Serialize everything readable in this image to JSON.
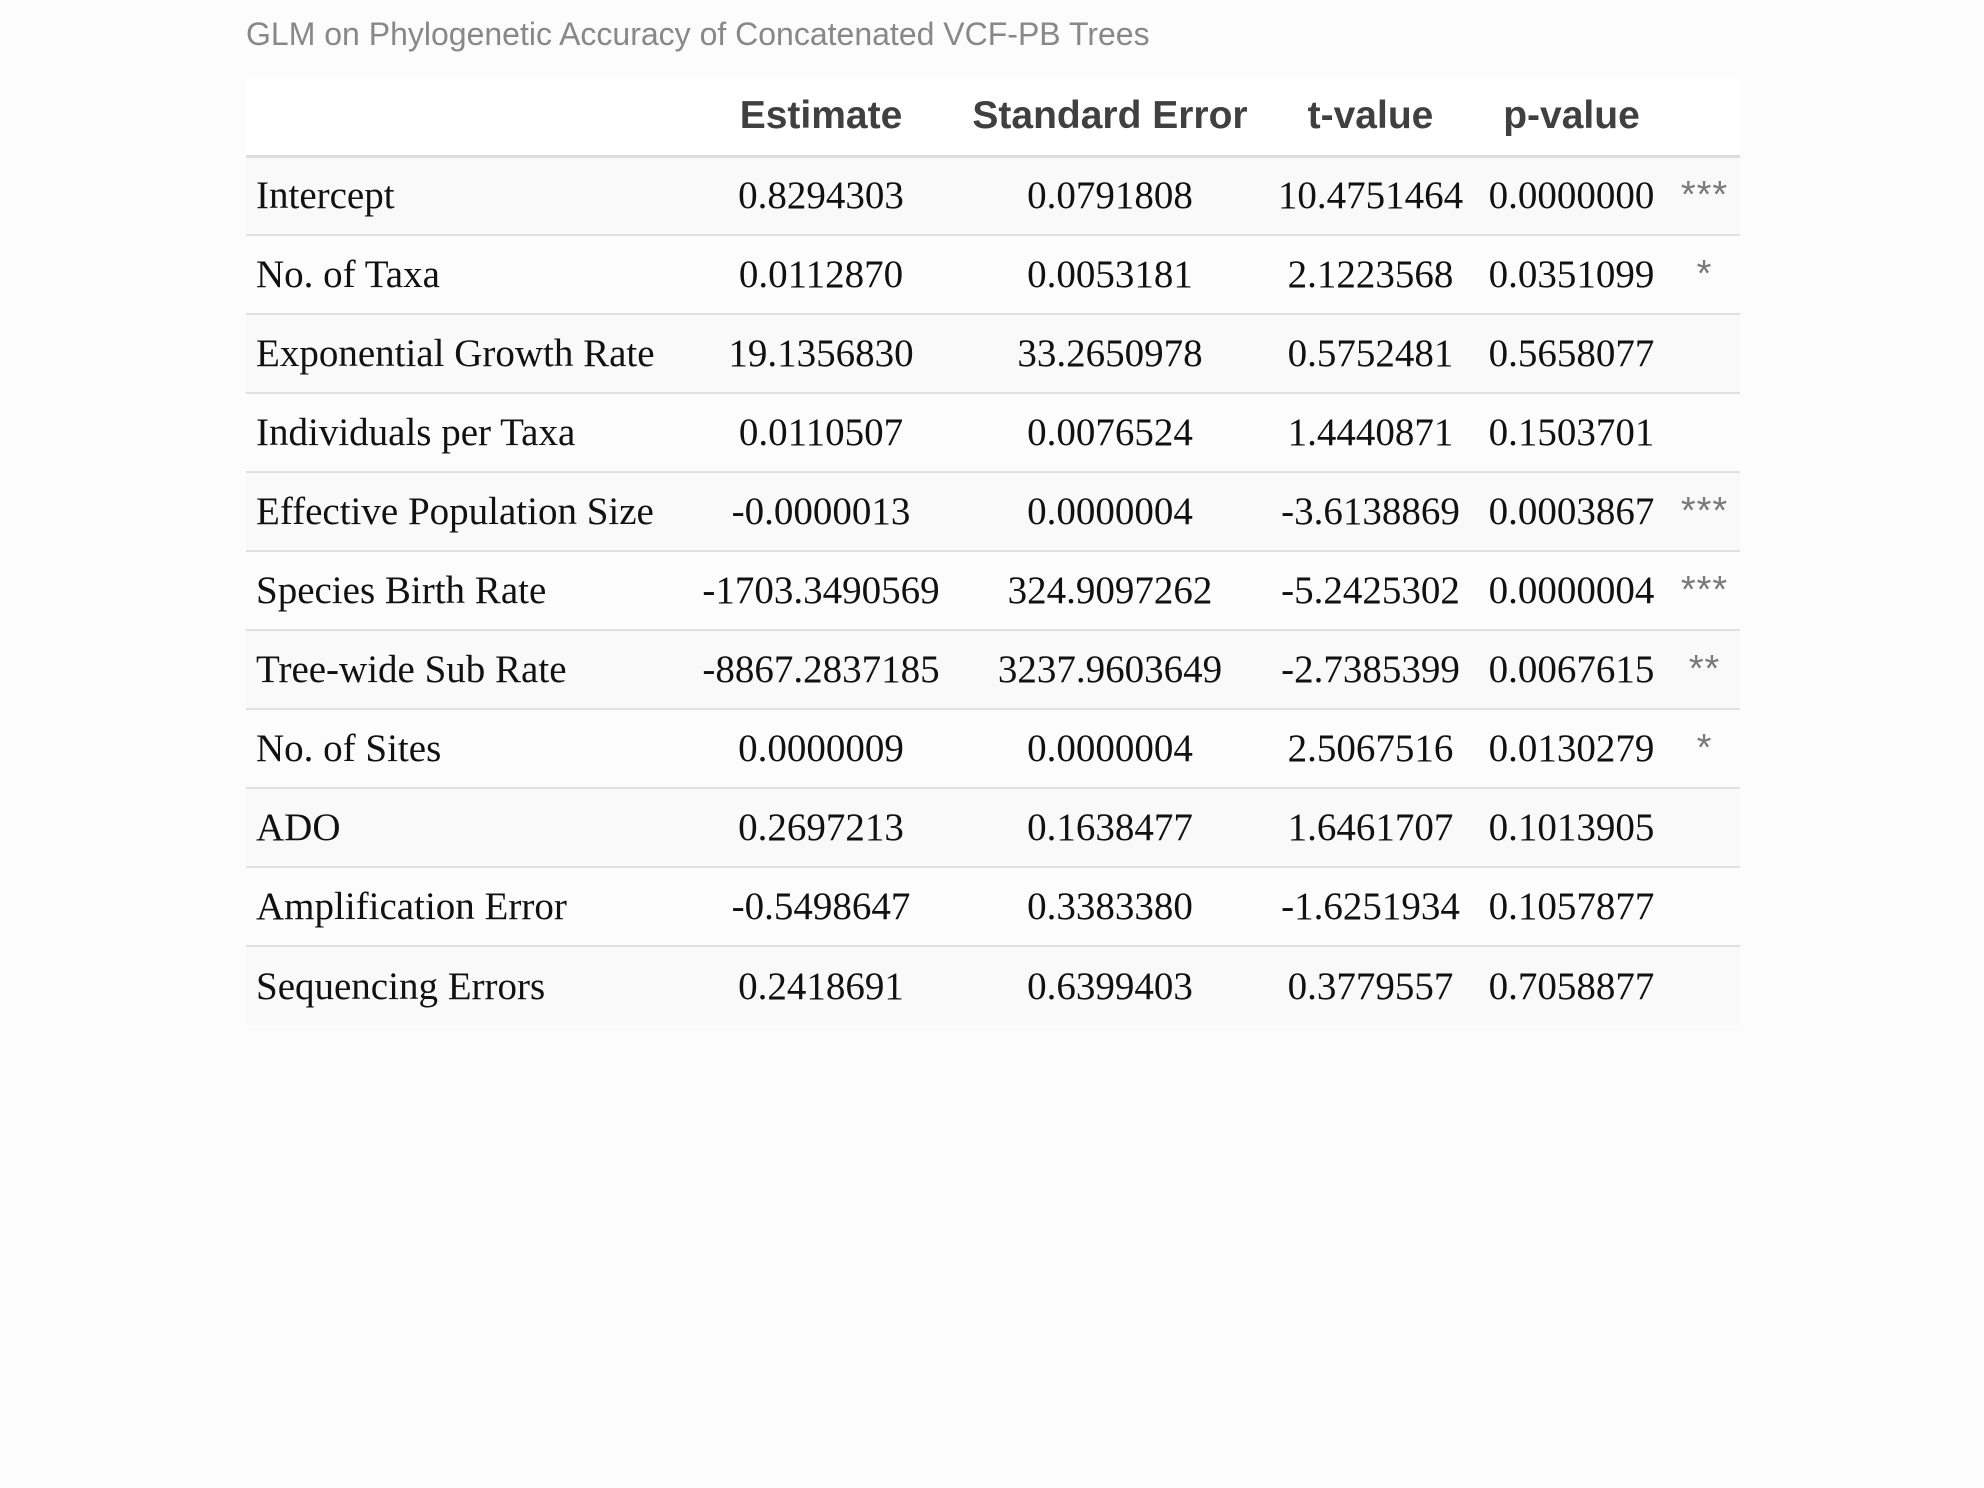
{
  "caption": "GLM on Phylogenetic Accuracy of Concatenated VCF-PB Trees",
  "columns": {
    "term": "",
    "estimate": "Estimate",
    "std_error": "Standard Error",
    "t_value": "t-value",
    "p_value": "p-value",
    "signif": ""
  },
  "rows": [
    {
      "term": "Intercept",
      "estimate": "0.8294303",
      "std_error": "0.0791808",
      "t_value": "10.4751464",
      "p_value": "0.0000000",
      "signif": "***"
    },
    {
      "term": "No. of Taxa",
      "estimate": "0.0112870",
      "std_error": "0.0053181",
      "t_value": "2.1223568",
      "p_value": "0.0351099",
      "signif": "*"
    },
    {
      "term": "Exponential Growth Rate",
      "estimate": "19.1356830",
      "std_error": "33.2650978",
      "t_value": "0.5752481",
      "p_value": "0.5658077",
      "signif": ""
    },
    {
      "term": "Individuals per Taxa",
      "estimate": "0.0110507",
      "std_error": "0.0076524",
      "t_value": "1.4440871",
      "p_value": "0.1503701",
      "signif": ""
    },
    {
      "term": "Effective Population Size",
      "estimate": "-0.0000013",
      "std_error": "0.0000004",
      "t_value": "-3.6138869",
      "p_value": "0.0003867",
      "signif": "***"
    },
    {
      "term": "Species Birth Rate",
      "estimate": "-1703.3490569",
      "std_error": "324.9097262",
      "t_value": "-5.2425302",
      "p_value": "0.0000004",
      "signif": "***"
    },
    {
      "term": "Tree-wide Sub Rate",
      "estimate": "-8867.2837185",
      "std_error": "3237.9603649",
      "t_value": "-2.7385399",
      "p_value": "0.0067615",
      "signif": "**"
    },
    {
      "term": "No. of Sites",
      "estimate": "0.0000009",
      "std_error": "0.0000004",
      "t_value": "2.5067516",
      "p_value": "0.0130279",
      "signif": "*"
    },
    {
      "term": "ADO",
      "estimate": "0.2697213",
      "std_error": "0.1638477",
      "t_value": "1.6461707",
      "p_value": "0.1013905",
      "signif": ""
    },
    {
      "term": "Amplification Error",
      "estimate": "-0.5498647",
      "std_error": "0.3383380",
      "t_value": "-1.6251934",
      "p_value": "0.1057877",
      "signif": ""
    },
    {
      "term": "Sequencing Errors",
      "estimate": "0.2418691",
      "std_error": "0.6399403",
      "t_value": "0.3779557",
      "p_value": "0.7058877",
      "signif": ""
    }
  ]
}
